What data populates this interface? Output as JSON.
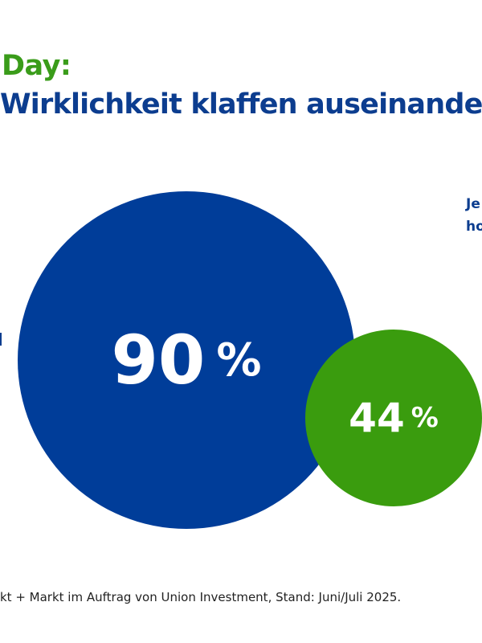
{
  "header": {
    "title_line1": "Day:",
    "title_line2": "Wirklichkeit klaffen auseinande"
  },
  "side_label": {
    "line1": "Je",
    "line2": "ho"
  },
  "chart_data": {
    "type": "bubble",
    "series": [
      {
        "name": "blue",
        "value": 90,
        "label": "90",
        "unit": "%",
        "color": "#003d99"
      },
      {
        "name": "green",
        "value": 44,
        "label": "44",
        "unit": "%",
        "color": "#3a9c0e"
      }
    ]
  },
  "footer": {
    "source": "kt + Markt im Auftrag von Union Investment, Stand: Juni/Juli 2025."
  }
}
